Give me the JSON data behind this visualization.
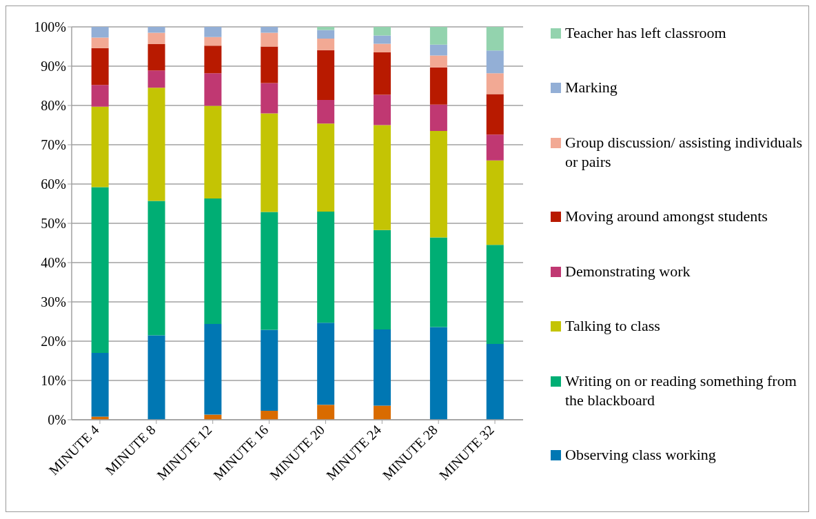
{
  "chart_data": {
    "type": "bar",
    "stacked": true,
    "categories": [
      "MINUTE 4",
      "MINUTE 8",
      "MINUTE 12",
      "MINUTE 16",
      "MINUTE 20",
      "MINUTE 24",
      "MINUTE 28",
      "MINUTE 32"
    ],
    "series": [
      {
        "color": "#d96b00",
        "values": [
          0.8,
          0,
          1.3,
          2.3,
          3.8,
          3.6,
          0,
          0
        ]
      },
      {
        "name": "Observing class working",
        "color": "#0077b3",
        "values": [
          16.2,
          21.5,
          23.1,
          20.6,
          20.9,
          19.4,
          23.6,
          19.3
        ]
      },
      {
        "name": "Writing on or reading something from the blackboard",
        "color": "#00ae74",
        "values": [
          42.2,
          34.2,
          31.9,
          30.0,
          28.3,
          25.3,
          22.8,
          25.2
        ]
      },
      {
        "name": "Talking to class",
        "color": "#c4c404",
        "values": [
          20.5,
          28.8,
          23.6,
          25.1,
          22.4,
          26.7,
          27.1,
          21.5
        ]
      },
      {
        "name": "Demonstrating work",
        "color": "#c03872",
        "values": [
          5.5,
          4.4,
          8.3,
          7.7,
          6.0,
          7.7,
          6.7,
          6.6
        ]
      },
      {
        "name": "Moving around amongst students",
        "color": "#b81a00",
        "values": [
          9.4,
          6.7,
          7.0,
          9.3,
          12.7,
          10.8,
          9.5,
          10.3
        ]
      },
      {
        "name": "Group discussion/ assisting individuals or pairs",
        "color": "#f2a994",
        "values": [
          2.7,
          2.9,
          2.2,
          3.5,
          2.9,
          2.2,
          3.0,
          5.3
        ]
      },
      {
        "name": "Marking",
        "color": "#93afd6",
        "values": [
          2.7,
          1.5,
          2.6,
          1.5,
          2.2,
          2.1,
          2.8,
          5.8
        ]
      },
      {
        "name": "Teacher has left classroom",
        "color": "#93d3ae",
        "values": [
          0,
          0,
          0,
          0,
          0.8,
          2.2,
          4.5,
          6.0
        ]
      }
    ],
    "ylim": [
      0,
      100
    ],
    "yticks": [
      {
        "value": 0,
        "label": "0%"
      },
      {
        "value": 10,
        "label": "10%"
      },
      {
        "value": 20,
        "label": "20%"
      },
      {
        "value": 30,
        "label": "30%"
      },
      {
        "value": 40,
        "label": "40%"
      },
      {
        "value": 50,
        "label": "50%"
      },
      {
        "value": 60,
        "label": "60%"
      },
      {
        "value": 70,
        "label": "70%"
      },
      {
        "value": 80,
        "label": "80%"
      },
      {
        "value": 90,
        "label": "90%"
      },
      {
        "value": 100,
        "label": "100%"
      }
    ],
    "grid": "y",
    "legend": "right"
  }
}
